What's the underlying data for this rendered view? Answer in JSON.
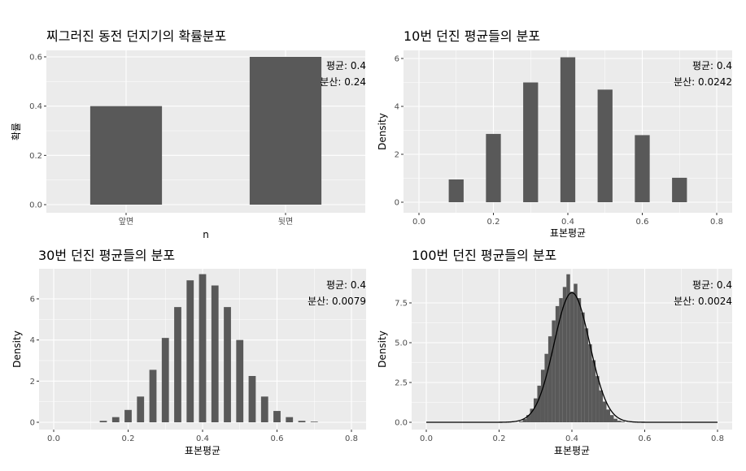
{
  "figure": {
    "layout": "2x2 grid of ggplot panels"
  },
  "chart_data": [
    {
      "type": "bar",
      "title": "찌그러진 동전 던지기의 확률분포",
      "xlabel": "n",
      "ylabel": "확률",
      "categories": [
        "앞면",
        "뒷면"
      ],
      "values": [
        0.4,
        0.6
      ],
      "ylim": [
        0,
        0.6
      ],
      "yticks": [
        0,
        0.2,
        0.4,
        0.6
      ],
      "ytick_labels": [
        "0.0",
        "0.2",
        "0.4",
        "0.6"
      ],
      "annotations": [
        "평균: 0.4",
        "분산: 0.24"
      ],
      "background": "#ebebeb",
      "bar_color": "#595959",
      "grid": true
    },
    {
      "type": "bar",
      "title": "10번 던진 평균들의 분포",
      "xlabel": "표본평균",
      "ylabel": "Density",
      "xlim": [
        0,
        0.8
      ],
      "ylim": [
        0,
        6
      ],
      "xticks": [
        0,
        0.2,
        0.4,
        0.6,
        0.8
      ],
      "xtick_labels": [
        "0.0",
        "0.2",
        "0.4",
        "0.6",
        "0.8"
      ],
      "yticks": [
        0,
        2,
        4,
        6
      ],
      "ytick_labels": [
        "0",
        "2",
        "4",
        "6"
      ],
      "bin_width": 0.04,
      "bins": [
        {
          "x": 0.1,
          "density": 0.95
        },
        {
          "x": 0.2,
          "density": 2.85
        },
        {
          "x": 0.3,
          "density": 5.0
        },
        {
          "x": 0.4,
          "density": 6.05
        },
        {
          "x": 0.5,
          "density": 4.7
        },
        {
          "x": 0.6,
          "density": 2.8
        },
        {
          "x": 0.7,
          "density": 1.02
        }
      ],
      "annotations": [
        "평균: 0.4",
        "분산: 0.0242"
      ],
      "background": "#ebebeb",
      "bar_color": "#595959",
      "grid": true
    },
    {
      "type": "bar",
      "title": "30번 던진 평균들의 분포",
      "xlabel": "표본평균",
      "ylabel": "Density",
      "xlim": [
        0,
        0.8
      ],
      "ylim": [
        0,
        7
      ],
      "xticks": [
        0,
        0.2,
        0.4,
        0.6,
        0.8
      ],
      "xtick_labels": [
        "0.0",
        "0.2",
        "0.4",
        "0.6",
        "0.8"
      ],
      "yticks": [
        0,
        2,
        4,
        6
      ],
      "ytick_labels": [
        "0",
        "2",
        "4",
        "6"
      ],
      "bin_width": 0.0192,
      "bins": [
        {
          "x": 0.1333,
          "density": 0.07
        },
        {
          "x": 0.1667,
          "density": 0.25
        },
        {
          "x": 0.2,
          "density": 0.6
        },
        {
          "x": 0.2333,
          "density": 1.25
        },
        {
          "x": 0.2667,
          "density": 2.55
        },
        {
          "x": 0.3,
          "density": 4.1
        },
        {
          "x": 0.3333,
          "density": 5.6
        },
        {
          "x": 0.3667,
          "density": 6.9
        },
        {
          "x": 0.4,
          "density": 7.2
        },
        {
          "x": 0.4333,
          "density": 6.65
        },
        {
          "x": 0.4667,
          "density": 5.6
        },
        {
          "x": 0.5,
          "density": 4.0
        },
        {
          "x": 0.5333,
          "density": 2.25
        },
        {
          "x": 0.5667,
          "density": 1.25
        },
        {
          "x": 0.6,
          "density": 0.55
        },
        {
          "x": 0.6333,
          "density": 0.25
        },
        {
          "x": 0.6667,
          "density": 0.07
        },
        {
          "x": 0.7,
          "density": 0.03
        }
      ],
      "annotations": [
        "평균: 0.4",
        "분산: 0.0079"
      ],
      "background": "#ebebeb",
      "bar_color": "#595959",
      "grid": true
    },
    {
      "type": "bar",
      "title": "100번 던진 평균들의 분포",
      "xlabel": "표본평균",
      "ylabel": "Density",
      "xlim": [
        0,
        0.8
      ],
      "ylim": [
        0,
        9
      ],
      "xticks": [
        0,
        0.2,
        0.4,
        0.6,
        0.8
      ],
      "xtick_labels": [
        "0.0",
        "0.2",
        "0.4",
        "0.6",
        "0.8"
      ],
      "yticks": [
        0,
        2.5,
        5,
        7.5
      ],
      "ytick_labels": [
        "0.0",
        "2.5",
        "5.0",
        "7.5"
      ],
      "bin_width": 0.01,
      "bins": [
        {
          "x": 0.26,
          "density": 0.05
        },
        {
          "x": 0.27,
          "density": 0.2
        },
        {
          "x": 0.28,
          "density": 0.45
        },
        {
          "x": 0.29,
          "density": 0.85
        },
        {
          "x": 0.3,
          "density": 1.5
        },
        {
          "x": 0.31,
          "density": 2.3
        },
        {
          "x": 0.32,
          "density": 3.3
        },
        {
          "x": 0.33,
          "density": 4.3
        },
        {
          "x": 0.34,
          "density": 5.4
        },
        {
          "x": 0.35,
          "density": 6.4
        },
        {
          "x": 0.36,
          "density": 7.3
        },
        {
          "x": 0.37,
          "density": 7.8
        },
        {
          "x": 0.38,
          "density": 8.5
        },
        {
          "x": 0.39,
          "density": 9.3
        },
        {
          "x": 0.4,
          "density": 8.2
        },
        {
          "x": 0.41,
          "density": 8.7
        },
        {
          "x": 0.42,
          "density": 7.8
        },
        {
          "x": 0.43,
          "density": 6.9
        },
        {
          "x": 0.44,
          "density": 5.9
        },
        {
          "x": 0.45,
          "density": 4.9
        },
        {
          "x": 0.46,
          "density": 3.9
        },
        {
          "x": 0.47,
          "density": 2.9
        },
        {
          "x": 0.48,
          "density": 2.0
        },
        {
          "x": 0.49,
          "density": 1.3
        },
        {
          "x": 0.5,
          "density": 0.8
        },
        {
          "x": 0.51,
          "density": 0.45
        },
        {
          "x": 0.52,
          "density": 0.22
        },
        {
          "x": 0.53,
          "density": 0.1
        },
        {
          "x": 0.54,
          "density": 0.05
        }
      ],
      "density_curve": {
        "type": "normal",
        "mean": 0.4,
        "sd": 0.049,
        "x_range": [
          0,
          0.8
        ]
      },
      "annotations": [
        "평균: 0.4",
        "분산: 0.0024"
      ],
      "background": "#ebebeb",
      "bar_color": "#595959",
      "grid": true
    }
  ]
}
